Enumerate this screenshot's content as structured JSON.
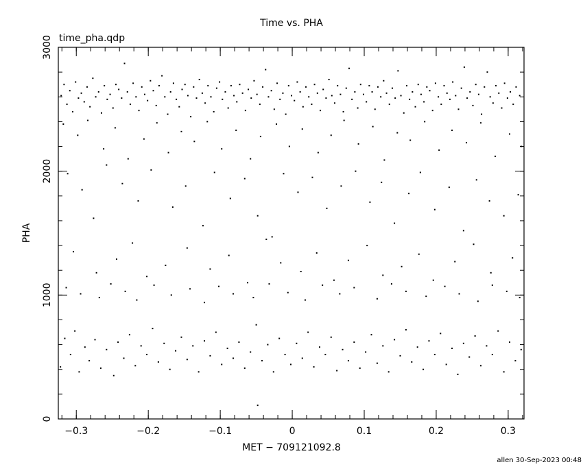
{
  "chart_data": {
    "type": "scatter",
    "title": "Time vs. PHA",
    "subtitle": "time_pha.qdp",
    "xlabel": "MET − 709121092.8",
    "ylabel": "PHA",
    "xlim": [
      -0.325,
      0.322
    ],
    "ylim": [
      0,
      3000
    ],
    "xticks": [
      -0.3,
      -0.2,
      -0.1,
      0,
      0.1,
      0.2,
      0.3
    ],
    "xtick_labels": [
      "−0.3",
      "−0.2",
      "−0.1",
      "0",
      "0.1",
      "0.2",
      "0.3"
    ],
    "yticks": [
      0,
      1000,
      2000,
      3000
    ],
    "ytick_labels": [
      "0",
      "1000",
      "2000",
      "3000"
    ],
    "x_minor_step": 0.02,
    "y_minor_step": 200,
    "grid": false,
    "marker_color": "#000000",
    "points": [
      [
        -0.321,
        2610
      ],
      [
        -0.317,
        2700
      ],
      [
        -0.313,
        2540
      ],
      [
        -0.309,
        2650
      ],
      [
        -0.305,
        2480
      ],
      [
        -0.301,
        2720
      ],
      [
        -0.297,
        2590
      ],
      [
        -0.293,
        2630
      ],
      [
        -0.289,
        2560
      ],
      [
        -0.285,
        2680
      ],
      [
        -0.281,
        2520
      ],
      [
        -0.277,
        2750
      ],
      [
        -0.273,
        2600
      ],
      [
        -0.269,
        2640
      ],
      [
        -0.265,
        2470
      ],
      [
        -0.261,
        2690
      ],
      [
        -0.257,
        2580
      ],
      [
        -0.253,
        2620
      ],
      [
        -0.249,
        2510
      ],
      [
        -0.245,
        2700
      ],
      [
        -0.241,
        2660
      ],
      [
        -0.237,
        2590
      ],
      [
        -0.233,
        2870
      ],
      [
        -0.229,
        2640
      ],
      [
        -0.225,
        2540
      ],
      [
        -0.221,
        2710
      ],
      [
        -0.217,
        2600
      ],
      [
        -0.213,
        2490
      ],
      [
        -0.209,
        2680
      ],
      [
        -0.205,
        2620
      ],
      [
        -0.201,
        2570
      ],
      [
        -0.197,
        2730
      ],
      [
        -0.193,
        2650
      ],
      [
        -0.189,
        2530
      ],
      [
        -0.185,
        2690
      ],
      [
        -0.181,
        2770
      ],
      [
        -0.177,
        2600
      ],
      [
        -0.173,
        2460
      ],
      [
        -0.169,
        2640
      ],
      [
        -0.165,
        2710
      ],
      [
        -0.161,
        2580
      ],
      [
        -0.157,
        2520
      ],
      [
        -0.153,
        2660
      ],
      [
        -0.149,
        2700
      ],
      [
        -0.145,
        2610
      ],
      [
        -0.141,
        2440
      ],
      [
        -0.137,
        2680
      ],
      [
        -0.133,
        2590
      ],
      [
        -0.129,
        2740
      ],
      [
        -0.125,
        2630
      ],
      [
        -0.121,
        2550
      ],
      [
        -0.117,
        2690
      ],
      [
        -0.113,
        2600
      ],
      [
        -0.109,
        2480
      ],
      [
        -0.105,
        2670
      ],
      [
        -0.101,
        2720
      ],
      [
        -0.097,
        2580
      ],
      [
        -0.093,
        2640
      ],
      [
        -0.089,
        2510
      ],
      [
        -0.085,
        2690
      ],
      [
        -0.081,
        2610
      ],
      [
        -0.077,
        2560
      ],
      [
        -0.073,
        2700
      ],
      [
        -0.069,
        2630
      ],
      [
        -0.065,
        2490
      ],
      [
        -0.061,
        2660
      ],
      [
        -0.057,
        2590
      ],
      [
        -0.053,
        2730
      ],
      [
        -0.049,
        2620
      ],
      [
        -0.045,
        2540
      ],
      [
        -0.041,
        2680
      ],
      [
        -0.037,
        2820
      ],
      [
        -0.033,
        2600
      ],
      [
        -0.029,
        2650
      ],
      [
        -0.025,
        2500
      ],
      [
        -0.021,
        2710
      ],
      [
        -0.017,
        2580
      ],
      [
        -0.013,
        2630
      ],
      [
        -0.009,
        2460
      ],
      [
        -0.005,
        2690
      ],
      [
        -0.001,
        2610
      ],
      [
        0.003,
        2570
      ],
      [
        0.007,
        2720
      ],
      [
        0.011,
        2640
      ],
      [
        0.015,
        2520
      ],
      [
        0.019,
        2680
      ],
      [
        0.023,
        2600
      ],
      [
        0.027,
        2540
      ],
      [
        0.031,
        2700
      ],
      [
        0.035,
        2630
      ],
      [
        0.039,
        2490
      ],
      [
        0.043,
        2660
      ],
      [
        0.047,
        2590
      ],
      [
        0.051,
        2740
      ],
      [
        0.055,
        2610
      ],
      [
        0.059,
        2550
      ],
      [
        0.063,
        2690
      ],
      [
        0.067,
        2620
      ],
      [
        0.071,
        2480
      ],
      [
        0.075,
        2670
      ],
      [
        0.079,
        2830
      ],
      [
        0.083,
        2580
      ],
      [
        0.087,
        2640
      ],
      [
        0.091,
        2510
      ],
      [
        0.095,
        2700
      ],
      [
        0.099,
        2620
      ],
      [
        0.103,
        2560
      ],
      [
        0.107,
        2690
      ],
      [
        0.111,
        2640
      ],
      [
        0.115,
        2500
      ],
      [
        0.119,
        2680
      ],
      [
        0.123,
        2600
      ],
      [
        0.127,
        2730
      ],
      [
        0.131,
        2630
      ],
      [
        0.135,
        2540
      ],
      [
        0.139,
        2670
      ],
      [
        0.143,
        2590
      ],
      [
        0.147,
        2810
      ],
      [
        0.151,
        2610
      ],
      [
        0.155,
        2470
      ],
      [
        0.159,
        2690
      ],
      [
        0.163,
        2580
      ],
      [
        0.167,
        2640
      ],
      [
        0.171,
        2520
      ],
      [
        0.175,
        2700
      ],
      [
        0.179,
        2620
      ],
      [
        0.183,
        2560
      ],
      [
        0.187,
        2680
      ],
      [
        0.191,
        2650
      ],
      [
        0.195,
        2490
      ],
      [
        0.199,
        2710
      ],
      [
        0.203,
        2600
      ],
      [
        0.207,
        2540
      ],
      [
        0.211,
        2690
      ],
      [
        0.215,
        2630
      ],
      [
        0.219,
        2580
      ],
      [
        0.223,
        2720
      ],
      [
        0.227,
        2610
      ],
      [
        0.231,
        2500
      ],
      [
        0.235,
        2670
      ],
      [
        0.239,
        2840
      ],
      [
        0.243,
        2590
      ],
      [
        0.247,
        2640
      ],
      [
        0.251,
        2530
      ],
      [
        0.255,
        2700
      ],
      [
        0.259,
        2620
      ],
      [
        0.263,
        2460
      ],
      [
        0.267,
        2680
      ],
      [
        0.271,
        2800
      ],
      [
        0.275,
        2600
      ],
      [
        0.279,
        2550
      ],
      [
        0.283,
        2690
      ],
      [
        0.287,
        2630
      ],
      [
        0.291,
        2510
      ],
      [
        0.295,
        2710
      ],
      [
        0.299,
        2590
      ],
      [
        0.303,
        2640
      ],
      [
        0.307,
        2540
      ],
      [
        0.311,
        2680
      ],
      [
        0.316,
        2610
      ],
      [
        -0.318,
        2380
      ],
      [
        -0.298,
        2290
      ],
      [
        -0.284,
        2410
      ],
      [
        -0.262,
        2180
      ],
      [
        -0.246,
        2350
      ],
      [
        -0.228,
        2100
      ],
      [
        -0.206,
        2260
      ],
      [
        -0.188,
        2390
      ],
      [
        -0.172,
        2150
      ],
      [
        -0.154,
        2320
      ],
      [
        -0.136,
        2240
      ],
      [
        -0.118,
        2400
      ],
      [
        -0.098,
        2180
      ],
      [
        -0.078,
        2330
      ],
      [
        -0.058,
        2100
      ],
      [
        -0.044,
        2280
      ],
      [
        -0.022,
        2380
      ],
      [
        -0.004,
        2200
      ],
      [
        0.014,
        2340
      ],
      [
        0.036,
        2150
      ],
      [
        0.054,
        2290
      ],
      [
        0.072,
        2410
      ],
      [
        0.092,
        2220
      ],
      [
        0.112,
        2360
      ],
      [
        0.128,
        2090
      ],
      [
        0.146,
        2310
      ],
      [
        0.164,
        2250
      ],
      [
        0.184,
        2400
      ],
      [
        0.204,
        2170
      ],
      [
        0.222,
        2330
      ],
      [
        0.242,
        2230
      ],
      [
        0.262,
        2390
      ],
      [
        0.282,
        2120
      ],
      [
        0.302,
        2300
      ],
      [
        0.318,
        2200
      ],
      [
        -0.312,
        1980
      ],
      [
        -0.292,
        1850
      ],
      [
        -0.276,
        1620
      ],
      [
        -0.258,
        2050
      ],
      [
        -0.236,
        1900
      ],
      [
        -0.214,
        1760
      ],
      [
        -0.196,
        2010
      ],
      [
        -0.166,
        1710
      ],
      [
        -0.148,
        1880
      ],
      [
        -0.124,
        1560
      ],
      [
        -0.108,
        1990
      ],
      [
        -0.086,
        1780
      ],
      [
        -0.066,
        1940
      ],
      [
        -0.048,
        1640
      ],
      [
        -0.028,
        1470
      ],
      [
        -0.012,
        1980
      ],
      [
        0.008,
        1830
      ],
      [
        0.028,
        1950
      ],
      [
        0.048,
        1700
      ],
      [
        0.068,
        1880
      ],
      [
        0.088,
        2000
      ],
      [
        0.108,
        1750
      ],
      [
        0.124,
        1910
      ],
      [
        0.142,
        1580
      ],
      [
        0.162,
        1820
      ],
      [
        0.178,
        1990
      ],
      [
        0.198,
        1690
      ],
      [
        0.218,
        1870
      ],
      [
        0.238,
        1520
      ],
      [
        0.256,
        1930
      ],
      [
        0.274,
        1760
      ],
      [
        0.294,
        1640
      ],
      [
        0.314,
        1810
      ],
      [
        -0.304,
        1350
      ],
      [
        -0.272,
        1180
      ],
      [
        -0.244,
        1290
      ],
      [
        -0.222,
        1420
      ],
      [
        -0.202,
        1150
      ],
      [
        -0.176,
        1240
      ],
      [
        -0.146,
        1380
      ],
      [
        -0.114,
        1210
      ],
      [
        -0.088,
        1320
      ],
      [
        -0.062,
        1100
      ],
      [
        -0.036,
        1450
      ],
      [
        -0.016,
        1260
      ],
      [
        0.012,
        1190
      ],
      [
        0.034,
        1340
      ],
      [
        0.058,
        1120
      ],
      [
        0.078,
        1280
      ],
      [
        0.104,
        1400
      ],
      [
        0.126,
        1160
      ],
      [
        0.152,
        1230
      ],
      [
        0.176,
        1330
      ],
      [
        0.196,
        1120
      ],
      [
        0.226,
        1270
      ],
      [
        0.252,
        1410
      ],
      [
        0.276,
        1180
      ],
      [
        0.306,
        1300
      ],
      [
        -0.314,
        1060
      ],
      [
        -0.294,
        1010
      ],
      [
        -0.268,
        980
      ],
      [
        -0.252,
        1090
      ],
      [
        -0.232,
        1030
      ],
      [
        -0.216,
        960
      ],
      [
        -0.192,
        1080
      ],
      [
        -0.168,
        1000
      ],
      [
        -0.142,
        1050
      ],
      [
        -0.122,
        940
      ],
      [
        -0.102,
        1070
      ],
      [
        -0.082,
        1010
      ],
      [
        -0.054,
        980
      ],
      [
        -0.032,
        1090
      ],
      [
        -0.006,
        1020
      ],
      [
        0.018,
        960
      ],
      [
        0.042,
        1080
      ],
      [
        0.066,
        1010
      ],
      [
        0.086,
        1060
      ],
      [
        0.118,
        970
      ],
      [
        0.138,
        1090
      ],
      [
        0.158,
        1030
      ],
      [
        0.186,
        990
      ],
      [
        0.212,
        1070
      ],
      [
        0.232,
        1010
      ],
      [
        0.258,
        950
      ],
      [
        0.278,
        1080
      ],
      [
        0.298,
        1030
      ],
      [
        0.316,
        980
      ],
      [
        -0.322,
        420
      ],
      [
        -0.316,
        650
      ],
      [
        -0.308,
        520
      ],
      [
        -0.302,
        710
      ],
      [
        -0.296,
        380
      ],
      [
        -0.288,
        580
      ],
      [
        -0.282,
        470
      ],
      [
        -0.274,
        640
      ],
      [
        -0.266,
        410
      ],
      [
        -0.258,
        560
      ],
      [
        -0.248,
        350
      ],
      [
        -0.242,
        620
      ],
      [
        -0.234,
        490
      ],
      [
        -0.226,
        680
      ],
      [
        -0.218,
        430
      ],
      [
        -0.21,
        590
      ],
      [
        -0.202,
        520
      ],
      [
        -0.194,
        730
      ],
      [
        -0.186,
        460
      ],
      [
        -0.178,
        610
      ],
      [
        -0.17,
        400
      ],
      [
        -0.162,
        550
      ],
      [
        -0.154,
        660
      ],
      [
        -0.146,
        480
      ],
      [
        -0.138,
        590
      ],
      [
        -0.13,
        380
      ],
      [
        -0.122,
        630
      ],
      [
        -0.114,
        510
      ],
      [
        -0.106,
        700
      ],
      [
        -0.098,
        440
      ],
      [
        -0.09,
        570
      ],
      [
        -0.082,
        490
      ],
      [
        -0.074,
        620
      ],
      [
        -0.066,
        410
      ],
      [
        -0.058,
        540
      ],
      [
        -0.05,
        760
      ],
      [
        -0.042,
        470
      ],
      [
        -0.034,
        600
      ],
      [
        -0.026,
        380
      ],
      [
        -0.018,
        650
      ],
      [
        -0.01,
        520
      ],
      [
        -0.002,
        440
      ],
      [
        0.006,
        610
      ],
      [
        0.014,
        490
      ],
      [
        0.022,
        700
      ],
      [
        0.03,
        420
      ],
      [
        0.038,
        580
      ],
      [
        0.046,
        520
      ],
      [
        0.054,
        660
      ],
      [
        0.062,
        390
      ],
      [
        0.07,
        560
      ],
      [
        0.078,
        470
      ],
      [
        0.086,
        620
      ],
      [
        0.094,
        410
      ],
      [
        0.102,
        540
      ],
      [
        0.11,
        680
      ],
      [
        0.118,
        450
      ],
      [
        0.126,
        590
      ],
      [
        0.134,
        380
      ],
      [
        0.142,
        640
      ],
      [
        0.15,
        510
      ],
      [
        0.158,
        720
      ],
      [
        0.166,
        460
      ],
      [
        0.174,
        580
      ],
      [
        0.182,
        400
      ],
      [
        0.19,
        630
      ],
      [
        0.198,
        520
      ],
      [
        0.206,
        690
      ],
      [
        0.214,
        440
      ],
      [
        0.222,
        570
      ],
      [
        0.23,
        360
      ],
      [
        0.238,
        610
      ],
      [
        0.246,
        500
      ],
      [
        0.254,
        670
      ],
      [
        0.262,
        430
      ],
      [
        0.27,
        590
      ],
      [
        0.278,
        520
      ],
      [
        0.286,
        710
      ],
      [
        0.294,
        380
      ],
      [
        0.302,
        620
      ],
      [
        0.31,
        470
      ],
      [
        0.318,
        560
      ],
      [
        -0.048,
        110
      ]
    ]
  },
  "footer": {
    "stamp": "allen 30-Sep-2023 00:48"
  }
}
